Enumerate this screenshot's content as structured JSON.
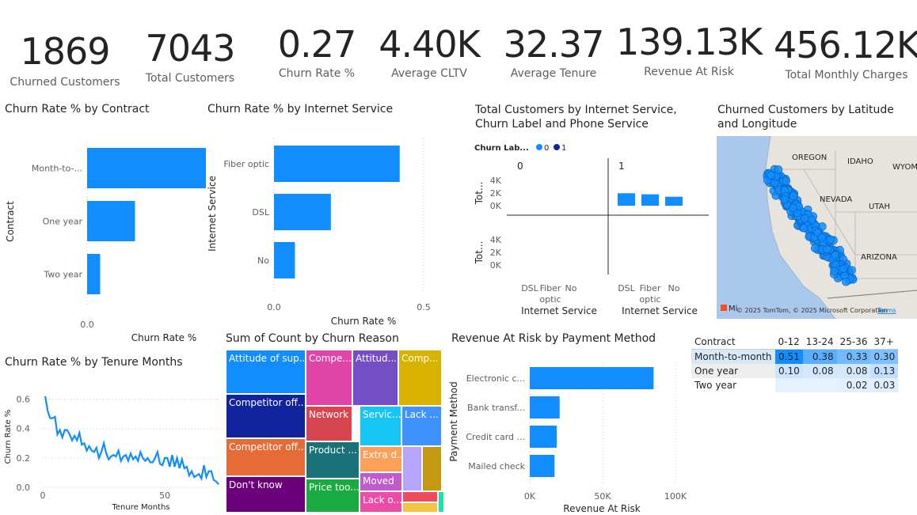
{
  "kpis": [
    {
      "value": "1869",
      "label": "Churned Customers"
    },
    {
      "value": "7043",
      "label": "Total Customers"
    },
    {
      "value": "0.27",
      "label": "Churn Rate %"
    },
    {
      "value": "4.40K",
      "label": "Average CLTV"
    },
    {
      "value": "32.37",
      "label": "Average Tenure"
    },
    {
      "value": "139.13K",
      "label": "Revenue At Risk"
    },
    {
      "value": "456.12K",
      "label": "Total Monthly Charges"
    }
  ],
  "colors": {
    "primary": "#118dff",
    "dark": "#12239e",
    "grid": "#c8c6c4",
    "text": "#252423"
  },
  "chart_data": [
    {
      "id": "contract",
      "type": "bar",
      "orientation": "horizontal",
      "title": "Churn Rate % by Contract",
      "xlabel": "Churn Rate %",
      "ylabel": "Contract",
      "categories": [
        "Month-to-...",
        "One year",
        "Two year"
      ],
      "values": [
        0.43,
        0.11,
        0.03
      ],
      "xlim": [
        0,
        0.5
      ],
      "xticks": [
        "0.0"
      ]
    },
    {
      "id": "internet",
      "type": "bar",
      "orientation": "horizontal",
      "title": "Churn Rate % by Internet Service",
      "xlabel": "Churn Rate %",
      "ylabel": "Internet Service",
      "categories": [
        "Fiber optic",
        "DSL",
        "No"
      ],
      "values": [
        0.42,
        0.19,
        0.07
      ],
      "xlim": [
        0,
        0.5
      ],
      "xticks": [
        "0.0",
        "0.5"
      ]
    },
    {
      "id": "small_multiples",
      "type": "bar",
      "stacked": true,
      "title": "Total Customers by Internet Service, Churn Label and Phone Service",
      "legend_title": "Churn Lab...",
      "legend": [
        "0",
        "1"
      ],
      "panel_labels": [
        "0",
        "1"
      ],
      "ylabel": "Tot...",
      "xlabel": "Internet Service",
      "categories": [
        "DSL",
        "Fiber optic",
        "No"
      ],
      "yticks": [
        "0K",
        "2K",
        "4K"
      ],
      "ylim": [
        0,
        4000
      ],
      "panels": [
        {
          "row": 0,
          "col": 0,
          "series": [
            {
              "name": "0",
              "values": [
                0,
                0,
                0
              ]
            },
            {
              "name": "1",
              "values": [
                0,
                0,
                0
              ]
            }
          ]
        },
        {
          "row": 0,
          "col": 1,
          "series": [
            {
              "name": "0",
              "values": [
                1962,
                1799,
                1413
              ]
            },
            {
              "name": "1",
              "values": [
                0,
                0,
                0
              ]
            }
          ]
        },
        {
          "row": 1,
          "col": 0,
          "series": [
            {
              "name": "0",
              "values": [
                0,
                0,
                0
              ]
            },
            {
              "name": "1",
              "values": [
                0,
                0,
                0
              ]
            }
          ]
        },
        {
          "row": 1,
          "col": 1,
          "series": [
            {
              "name": "0",
              "values": [
                0,
                0,
                0
              ]
            },
            {
              "name": "1",
              "values": [
                0,
                0,
                0
              ]
            }
          ]
        }
      ]
    },
    {
      "id": "tenure",
      "type": "line",
      "title": "Churn Rate % by Tenure Months",
      "xlabel": "Tenure Months",
      "ylabel": "Churn Rate %",
      "x": [
        1,
        2,
        3,
        4,
        5,
        6,
        7,
        8,
        9,
        10,
        11,
        12,
        13,
        14,
        15,
        16,
        17,
        18,
        19,
        20,
        21,
        22,
        23,
        24,
        25,
        26,
        27,
        28,
        29,
        30,
        31,
        32,
        33,
        34,
        35,
        36,
        37,
        38,
        39,
        40,
        41,
        42,
        43,
        44,
        45,
        46,
        47,
        48,
        49,
        50,
        51,
        52,
        53,
        54,
        55,
        56,
        57,
        58,
        59,
        60,
        61,
        62,
        63,
        64,
        65,
        66,
        67,
        68,
        69,
        70,
        71,
        72
      ],
      "values": [
        0.62,
        0.52,
        0.47,
        0.47,
        0.48,
        0.36,
        0.39,
        0.34,
        0.39,
        0.39,
        0.36,
        0.32,
        0.35,
        0.32,
        0.37,
        0.29,
        0.3,
        0.25,
        0.28,
        0.25,
        0.24,
        0.27,
        0.2,
        0.24,
        0.3,
        0.23,
        0.19,
        0.21,
        0.22,
        0.21,
        0.25,
        0.18,
        0.21,
        0.22,
        0.18,
        0.23,
        0.19,
        0.21,
        0.18,
        0.24,
        0.2,
        0.18,
        0.2,
        0.17,
        0.17,
        0.2,
        0.24,
        0.16,
        0.15,
        0.2,
        0.2,
        0.14,
        0.22,
        0.14,
        0.2,
        0.13,
        0.19,
        0.13,
        0.14,
        0.08,
        0.11,
        0.07,
        0.08,
        0.09,
        0.06,
        0.15,
        0.07,
        0.11,
        0.11,
        0.05,
        0.04,
        0.02
      ],
      "ylim": [
        0,
        0.7
      ],
      "yticks": [
        "0.0",
        "0.2",
        "0.4",
        "0.6"
      ],
      "xticks": [
        "0",
        "50"
      ]
    },
    {
      "id": "treemap",
      "type": "treemap",
      "title": "Sum of Count by Churn Reason",
      "labels": [
        "Attitude of sup...",
        "Competitor off...",
        "Competitor off...",
        "Don't know",
        "Compe...",
        "Network ...",
        "Product ...",
        "Price too...",
        "Attitud...",
        "Comp...",
        "Servic...",
        "Lack ...",
        "Extra d...",
        "Moved",
        "Lack o...",
        "",
        "",
        "",
        "",
        ""
      ],
      "colors": [
        "#118dff",
        "#12239e",
        "#e66c37",
        "#6b007b",
        "#e044a7",
        "#d64550",
        "#197278",
        "#1aab40",
        "#744ec2",
        "#d9b300",
        "#15c6f4",
        "#4092ff",
        "#ffa058",
        "#be5dc9",
        "#ed4ba5",
        "#b7a4ff",
        "#c29910",
        "#ef4c5c",
        "#f4c542",
        "#1ee2ad"
      ]
    },
    {
      "id": "payment",
      "type": "bar",
      "orientation": "horizontal",
      "title": "Revenue At Risk by Payment Method",
      "xlabel": "Revenue At Risk",
      "ylabel": "Payment Method",
      "categories": [
        "Electronic c...",
        "Bank transf...",
        "Credit card ...",
        "Mailed check"
      ],
      "values": [
        85000,
        20500,
        18500,
        17000
      ],
      "xlim": [
        0,
        100000
      ],
      "xticks": [
        "0K",
        "50K",
        "100K"
      ]
    }
  ],
  "map": {
    "title": "Churned Customers by Latitude and Longitude",
    "states": [
      "OREGON",
      "IDAHO",
      "WYOM",
      "NEVADA",
      "UTAH",
      "ARIZONA"
    ],
    "attribution": "© 2025 TomTom, © 2025 Microsoft Corporation",
    "terms": "Terms",
    "logo": "Mi"
  },
  "matrix": {
    "corner": "Contract",
    "columns": [
      "0-12",
      "13-24",
      "25-36",
      "37+"
    ],
    "rows": [
      {
        "label": "Month-to-month",
        "values": [
          "0.51",
          "0.38",
          "0.33",
          "0.30"
        ]
      },
      {
        "label": "One year",
        "values": [
          "0.10",
          "0.08",
          "0.08",
          "0.13"
        ]
      },
      {
        "label": "Two year",
        "values": [
          "",
          "",
          "0.02",
          "0.03"
        ]
      }
    ]
  }
}
